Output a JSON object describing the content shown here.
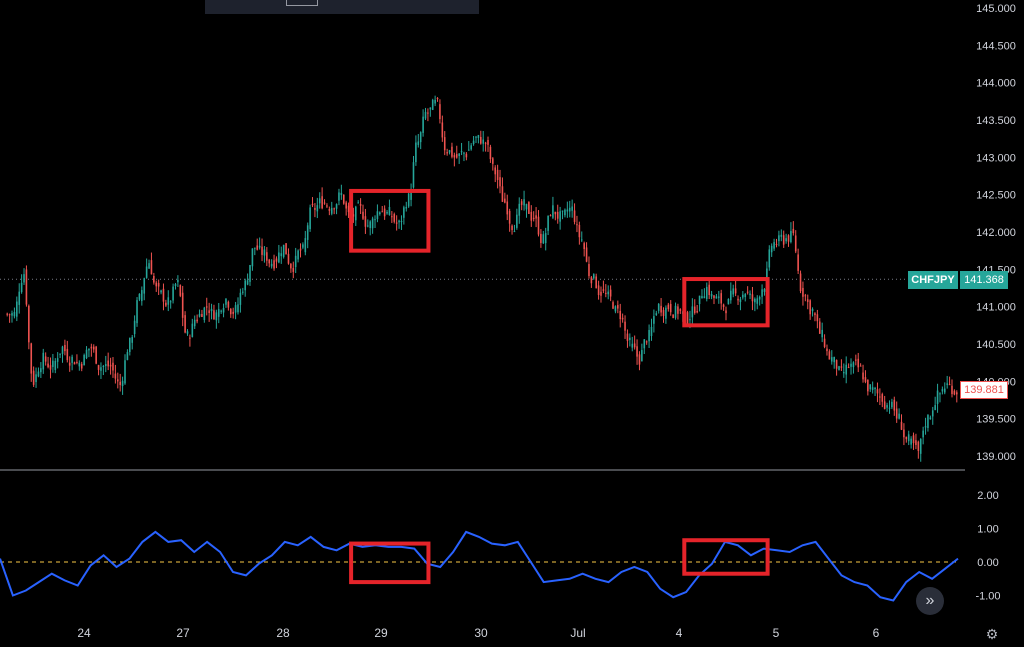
{
  "symbol_label": "CHFJPY",
  "last_price_label": "141.368",
  "current_price_label": "139.881",
  "scroll_icon": "double-chevron-right-icon",
  "settings_icon": "gear-icon",
  "colors": {
    "up": "#26a69a",
    "down": "#ef5350",
    "indicator": "#2962ff",
    "zero_line": "#f9c846",
    "highlight_box": "#e5242a",
    "background": "#000000"
  },
  "chart_data": [
    {
      "type": "candlestick",
      "title": "",
      "ylim": [
        138.8,
        145.0
      ],
      "y_ticks": [
        "145.000",
        "144.500",
        "144.000",
        "143.500",
        "143.000",
        "142.500",
        "142.000",
        "141.500",
        "141.000",
        "140.500",
        "140.000",
        "139.500",
        "139.000"
      ],
      "x_ticks": [
        "24",
        "27",
        "28",
        "29",
        "30",
        "Jul",
        "4",
        "5",
        "6"
      ],
      "series": [
        {
          "values": [
            140.9,
            141.45,
            140.0,
            140.3,
            140.2,
            140.45,
            140.3,
            140.25,
            140.45,
            140.2,
            140.2,
            139.95,
            140.5,
            141.1,
            141.6,
            141.2,
            141.05,
            141.3,
            140.6,
            140.85,
            141.0,
            140.9,
            141.1,
            140.95,
            141.3,
            141.8,
            141.7,
            141.6,
            141.8,
            141.55,
            141.75,
            142.3,
            142.4,
            142.35,
            142.5,
            142.2,
            142.3,
            142.1,
            142.3,
            142.25,
            142.1,
            142.45,
            143.2,
            143.6,
            143.7,
            143.1,
            143.0,
            143.05,
            143.25,
            143.2,
            142.8,
            142.4,
            142.1,
            142.35,
            142.2,
            141.9,
            142.3,
            142.2,
            142.3,
            141.9,
            141.4,
            141.2,
            141.1,
            140.9,
            140.5,
            140.3,
            140.6,
            141.0,
            141.0,
            140.95,
            140.85,
            141.0,
            141.25,
            141.1,
            141.0,
            141.15,
            141.2,
            141.05,
            141.3,
            141.85,
            141.9,
            141.95,
            141.2,
            140.95,
            140.6,
            140.3,
            140.1,
            140.2,
            140.15,
            139.9,
            139.8,
            139.7,
            139.5,
            139.2,
            139.05,
            139.5,
            139.8,
            139.95,
            139.88
          ],
          "color": "#26a69a"
        }
      ],
      "annotations": [
        {
          "type": "box",
          "x_range": [
            58,
            71
          ],
          "y_range": [
            141.75,
            142.55
          ]
        },
        {
          "type": "box",
          "x_range": [
            114,
            128
          ],
          "y_range": [
            140.75,
            141.37
          ]
        }
      ]
    },
    {
      "type": "line",
      "title": "",
      "ylim": [
        -1.25,
        2.1
      ],
      "y_ticks": [
        "2.00",
        "1.00",
        "0.00",
        "-1.00"
      ],
      "reference_line": 0.0,
      "series": [
        {
          "values": [
            0.1,
            -1.0,
            -0.85,
            -0.6,
            -0.35,
            -0.55,
            -0.7,
            -0.1,
            0.2,
            -0.15,
            0.1,
            0.6,
            0.9,
            0.6,
            0.65,
            0.3,
            0.6,
            0.3,
            -0.3,
            -0.4,
            -0.05,
            0.2,
            0.6,
            0.5,
            0.75,
            0.45,
            0.35,
            0.55,
            0.45,
            0.5,
            0.45,
            0.45,
            0.4,
            -0.05,
            -0.15,
            0.3,
            0.9,
            0.75,
            0.55,
            0.5,
            0.6,
            0.0,
            -0.6,
            -0.55,
            -0.5,
            -0.35,
            -0.5,
            -0.6,
            -0.3,
            -0.15,
            -0.3,
            -0.8,
            -1.05,
            -0.9,
            -0.4,
            -0.05,
            0.6,
            0.5,
            0.2,
            0.4,
            0.35,
            0.3,
            0.5,
            0.6,
            0.1,
            -0.4,
            -0.6,
            -0.7,
            -1.05,
            -1.15,
            -0.6,
            -0.3,
            -0.5,
            -0.2,
            0.1
          ],
          "color": "#2962ff"
        }
      ],
      "annotations": [
        {
          "type": "box",
          "x_range": [
            58,
            71
          ],
          "y_range": [
            -0.6,
            0.55
          ]
        },
        {
          "type": "box",
          "x_range": [
            114,
            128
          ],
          "y_range": [
            -0.35,
            0.65
          ]
        }
      ]
    }
  ]
}
